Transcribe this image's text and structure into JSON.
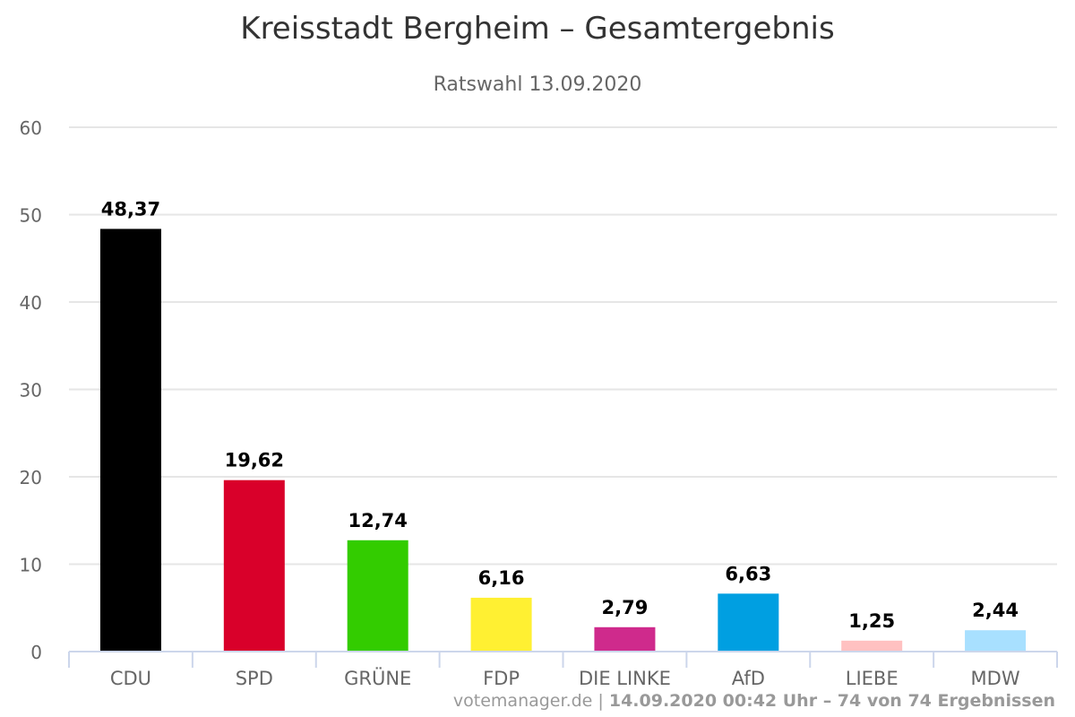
{
  "chart_data": {
    "type": "bar",
    "title": "Kreisstadt Bergheim – Gesamtergebnis",
    "subtitle": "Ratswahl 13.09.2020",
    "xlabel": "",
    "ylabel": "",
    "categories": [
      "CDU",
      "SPD",
      "GRÜNE",
      "FDP",
      "DIE LINKE",
      "AfD",
      "LIEBE",
      "MDW"
    ],
    "values": [
      48.37,
      19.62,
      12.74,
      6.16,
      2.79,
      6.63,
      1.25,
      2.44
    ],
    "value_labels": [
      "48,37",
      "19,62",
      "12,74",
      "6,16",
      "2,79",
      "6,63",
      "1,25",
      "2,44"
    ],
    "colors": [
      "#000000",
      "#d9002a",
      "#33cc00",
      "#fff032",
      "#cf2a8c",
      "#009fe1",
      "#ffc1c1",
      "#a8e0ff"
    ],
    "ylim": [
      0,
      60
    ],
    "yticks": [
      0,
      10,
      20,
      30,
      40,
      50,
      60
    ],
    "grid": true,
    "legend": "none"
  },
  "credits": {
    "source": "votemanager.de",
    "separator": " | ",
    "detail": "14.09.2020 00:42 Uhr – 74 von 74 Ergebnissen"
  }
}
